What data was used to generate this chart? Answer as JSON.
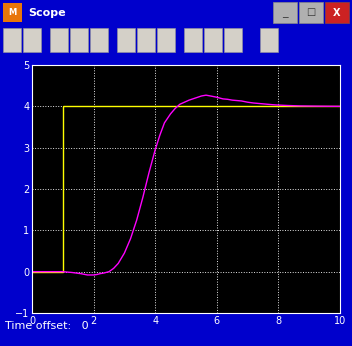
{
  "title": "Scope",
  "bg_plot": "#000000",
  "bg_outer": "#7b7b7b",
  "bg_titlebar": "#0050e0",
  "bg_toolbar": "#d4d0c8",
  "bg_statusbar": "#7b7b7b",
  "border_color": "#0000cc",
  "grid_color": "#ffffff",
  "ylabel_ticks": [
    -1,
    0,
    1,
    2,
    3,
    4,
    5
  ],
  "xlabel_ticks": [
    0,
    2,
    4,
    6,
    8,
    10
  ],
  "xlim": [
    0,
    10
  ],
  "ylim": [
    -1,
    5
  ],
  "time_offset_text": "Time offset:   0",
  "setpoint_color": "#ffff00",
  "response_color": "#ff00ff",
  "setpoint_x": [
    0,
    1.0,
    1.0,
    10.0
  ],
  "setpoint_y": [
    0.0,
    0.0,
    4.0,
    4.0
  ],
  "response_points": [
    [
      0.0,
      0.0
    ],
    [
      0.3,
      0.0
    ],
    [
      0.6,
      0.0
    ],
    [
      1.0,
      0.0
    ],
    [
      1.3,
      -0.02
    ],
    [
      1.6,
      -0.05
    ],
    [
      1.8,
      -0.08
    ],
    [
      2.0,
      -0.08
    ],
    [
      2.1,
      -0.07
    ],
    [
      2.2,
      -0.05
    ],
    [
      2.35,
      -0.03
    ],
    [
      2.5,
      0.0
    ],
    [
      2.65,
      0.08
    ],
    [
      2.8,
      0.2
    ],
    [
      3.0,
      0.45
    ],
    [
      3.2,
      0.8
    ],
    [
      3.4,
      1.25
    ],
    [
      3.6,
      1.8
    ],
    [
      3.8,
      2.4
    ],
    [
      4.0,
      2.95
    ],
    [
      4.15,
      3.3
    ],
    [
      4.3,
      3.6
    ],
    [
      4.5,
      3.82
    ],
    [
      4.65,
      3.95
    ],
    [
      4.8,
      4.05
    ],
    [
      4.95,
      4.1
    ],
    [
      5.1,
      4.15
    ],
    [
      5.3,
      4.2
    ],
    [
      5.5,
      4.25
    ],
    [
      5.65,
      4.27
    ],
    [
      5.8,
      4.25
    ],
    [
      6.0,
      4.22
    ],
    [
      6.2,
      4.18
    ],
    [
      6.35,
      4.17
    ],
    [
      6.5,
      4.15
    ],
    [
      6.65,
      4.14
    ],
    [
      6.8,
      4.13
    ],
    [
      7.0,
      4.1
    ],
    [
      7.2,
      4.08
    ],
    [
      7.5,
      4.06
    ],
    [
      7.8,
      4.04
    ],
    [
      8.0,
      4.03
    ],
    [
      8.3,
      4.02
    ],
    [
      8.7,
      4.01
    ],
    [
      9.2,
      4.005
    ],
    [
      9.6,
      4.002
    ],
    [
      10.0,
      4.0
    ]
  ]
}
